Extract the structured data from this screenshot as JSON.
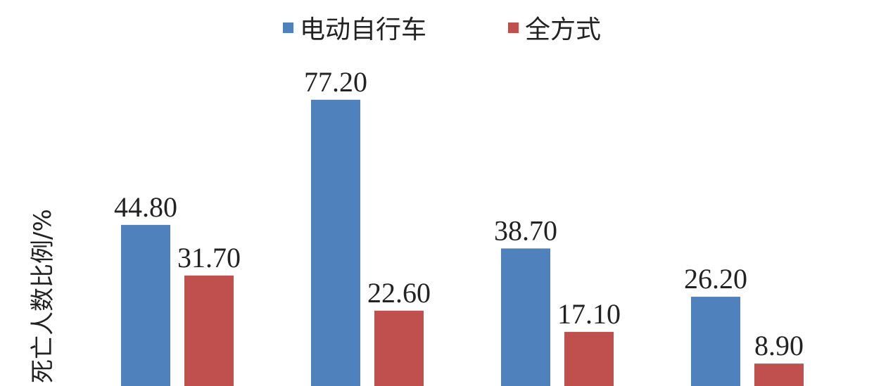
{
  "chart_data": {
    "type": "bar",
    "title": "",
    "xlabel": "",
    "ylabel": "死亡人数比例/%",
    "categories": [
      "",
      "",
      "",
      ""
    ],
    "series": [
      {
        "name": "电动自行车",
        "color": "#4f81bd",
        "values": [
          44.8,
          77.2,
          38.7,
          26.2
        ]
      },
      {
        "name": "全方式",
        "color": "#c0504d",
        "values": [
          31.7,
          22.6,
          17.1,
          8.9
        ]
      }
    ],
    "legend": "top-center",
    "grid": false,
    "ylim": [
      0,
      80
    ]
  }
}
